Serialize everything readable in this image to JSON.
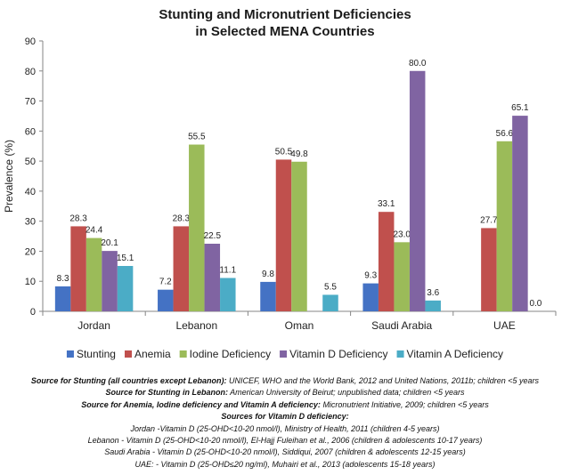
{
  "chart_data": {
    "type": "bar",
    "title": [
      "Stunting and Micronutrient Deficiencies",
      "in Selected MENA Countries"
    ],
    "ylabel": "Prevalence (%)",
    "xlabel": "",
    "ylim": [
      0,
      90
    ],
    "yticks": [
      0,
      10,
      20,
      30,
      40,
      50,
      60,
      70,
      80,
      90
    ],
    "categories": [
      "Jordan",
      "Lebanon",
      "Oman",
      "Saudi Arabia",
      "UAE"
    ],
    "series": [
      {
        "name": "Stunting",
        "color": "#4472C4",
        "values": [
          8.3,
          7.2,
          9.8,
          9.3,
          null
        ],
        "labels": [
          "8.3",
          "7.2",
          "9.8",
          "9.3",
          null
        ]
      },
      {
        "name": "Anemia",
        "color": "#C0504D",
        "values": [
          28.3,
          28.3,
          50.5,
          33.1,
          27.7
        ],
        "labels": [
          "28.3",
          "28.3",
          "50.5",
          "33.1",
          "27.7"
        ]
      },
      {
        "name": "Iodine Deficiency",
        "color": "#9BBB59",
        "values": [
          24.4,
          55.5,
          49.8,
          23.0,
          56.6
        ],
        "labels": [
          "24.4",
          "55.5",
          "49.8",
          "23.0",
          "56.6"
        ]
      },
      {
        "name": "Vitamin D Deficiency",
        "color": "#8064A2",
        "values": [
          20.1,
          22.5,
          null,
          80.0,
          65.1
        ],
        "labels": [
          "20.1",
          "22.5",
          null,
          "80.0",
          "65.1"
        ]
      },
      {
        "name": "Vitamin A Deficiency",
        "color": "#4BACC6",
        "values": [
          15.1,
          11.1,
          5.5,
          3.6,
          0.0
        ],
        "labels": [
          "15.1",
          "11.1",
          "5.5",
          "3.6",
          "0.0"
        ]
      }
    ],
    "grid": false,
    "legend_position": "bottom"
  },
  "notes": {
    "stunting_label": "Source for Stunting (all countries except Lebanon):",
    "stunting_text": " UNICEF, WHO and the World Bank, 2012 and United Nations, 2011b; children <5 years",
    "lebanon_label": "Source for Stunting in Lebanon:",
    "lebanon_text": " American University of Beirut; unpublished data; children <5 years",
    "micro_label": "Source for Anemia, Iodine deficiency and Vitamin A deficiency:",
    "micro_text": " Micronutrient Initiative, 2009; children <5 years",
    "vitd_heading": "Sources for Vitamin D deficiency:",
    "vitd_lines": [
      "Jordan -Vitamin D (25-OHD<10-20 nmol/l), Ministry of Health, 2011 (children 4-5 years)",
      "Lebanon - Vitamin D (25-OHD<10-20 nmol/l), El-Hajj Fuleihan et al., 2006 (children & adolescents 10-17 years)",
      "Saudi Arabia - Vitamin D (25-OHD<10-20 nmol/l), Siddiqui, 2007 (children & adolescents 12-15 years)",
      "UAE: - Vitamin D (25-OHD≤20 ng/ml), Muhairi et al., 2013 (adolescents 15-18 years)"
    ]
  }
}
